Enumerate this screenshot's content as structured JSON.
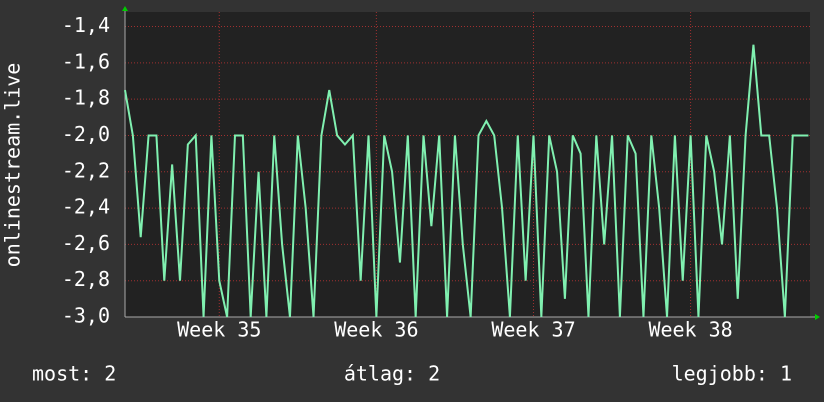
{
  "chart_data": {
    "type": "line",
    "ylabel": "onlinestream.live",
    "color": "#80f0b0",
    "grid": true,
    "ylim": [
      -3.0,
      -1.32
    ],
    "yticks": [
      {
        "value": -3.0,
        "label": "-3,0"
      },
      {
        "value": -2.8,
        "label": "-2,8"
      },
      {
        "value": -2.6,
        "label": "-2,6"
      },
      {
        "value": -2.4,
        "label": "-2,4"
      },
      {
        "value": -2.2,
        "label": "-2,2"
      },
      {
        "value": -2.0,
        "label": "-2,0"
      },
      {
        "value": -1.8,
        "label": "-1,8"
      },
      {
        "value": -1.6,
        "label": "-1,6"
      },
      {
        "value": -1.4,
        "label": "-1,4"
      }
    ],
    "xlim": [
      34.4,
      38.76
    ],
    "xticks": [
      {
        "value": 35,
        "label": "Week 35"
      },
      {
        "value": 36,
        "label": "Week 36"
      },
      {
        "value": 37,
        "label": "Week 37"
      },
      {
        "value": 38,
        "label": "Week 38"
      }
    ],
    "x": [
      34.4,
      34.45,
      34.5,
      34.55,
      34.6,
      34.65,
      34.7,
      34.75,
      34.8,
      34.85,
      34.9,
      34.95,
      35.0,
      35.05,
      35.1,
      35.15,
      35.2,
      35.25,
      35.3,
      35.35,
      35.4,
      35.45,
      35.5,
      35.55,
      35.6,
      35.65,
      35.7,
      35.75,
      35.8,
      35.85,
      35.9,
      35.95,
      36.0,
      36.05,
      36.1,
      36.15,
      36.2,
      36.25,
      36.3,
      36.35,
      36.4,
      36.45,
      36.5,
      36.55,
      36.6,
      36.65,
      36.7,
      36.75,
      36.8,
      36.85,
      36.9,
      36.95,
      37.0,
      37.05,
      37.1,
      37.15,
      37.2,
      37.25,
      37.3,
      37.35,
      37.4,
      37.45,
      37.5,
      37.55,
      37.6,
      37.65,
      37.7,
      37.75,
      37.8,
      37.85,
      37.9,
      37.95,
      38.0,
      38.05,
      38.1,
      38.15,
      38.2,
      38.25,
      38.3,
      38.35,
      38.4,
      38.45,
      38.5,
      38.55,
      38.6,
      38.65,
      38.7,
      38.75
    ],
    "values": [
      -1.75,
      -2.0,
      -2.56,
      -2.0,
      -2.0,
      -2.8,
      -2.16,
      -2.8,
      -2.05,
      -2.0,
      -3.0,
      -2.0,
      -2.8,
      -3.0,
      -2.0,
      -2.0,
      -3.0,
      -2.2,
      -3.0,
      -2.0,
      -2.6,
      -3.0,
      -2.0,
      -2.4,
      -3.0,
      -2.0,
      -1.75,
      -2.0,
      -2.05,
      -2.0,
      -2.8,
      -2.0,
      -3.0,
      -2.0,
      -2.2,
      -2.7,
      -2.0,
      -3.0,
      -2.0,
      -2.5,
      -2.0,
      -3.0,
      -2.0,
      -2.6,
      -3.0,
      -2.0,
      -1.92,
      -2.0,
      -2.4,
      -3.0,
      -2.0,
      -2.8,
      -2.0,
      -3.0,
      -2.0,
      -2.2,
      -2.9,
      -2.0,
      -2.1,
      -3.0,
      -2.0,
      -2.6,
      -2.0,
      -3.0,
      -2.0,
      -2.1,
      -3.0,
      -2.0,
      -2.4,
      -3.0,
      -2.0,
      -2.8,
      -2.0,
      -3.0,
      -2.0,
      -2.2,
      -2.6,
      -2.0,
      -2.9,
      -2.0,
      -1.5,
      -2.0,
      -2.0,
      -2.4,
      -3.0,
      -2.0,
      -2.0,
      -2.0
    ],
    "stats": [
      "most: 2",
      "átlag: 2",
      "legjobb: 1"
    ]
  }
}
